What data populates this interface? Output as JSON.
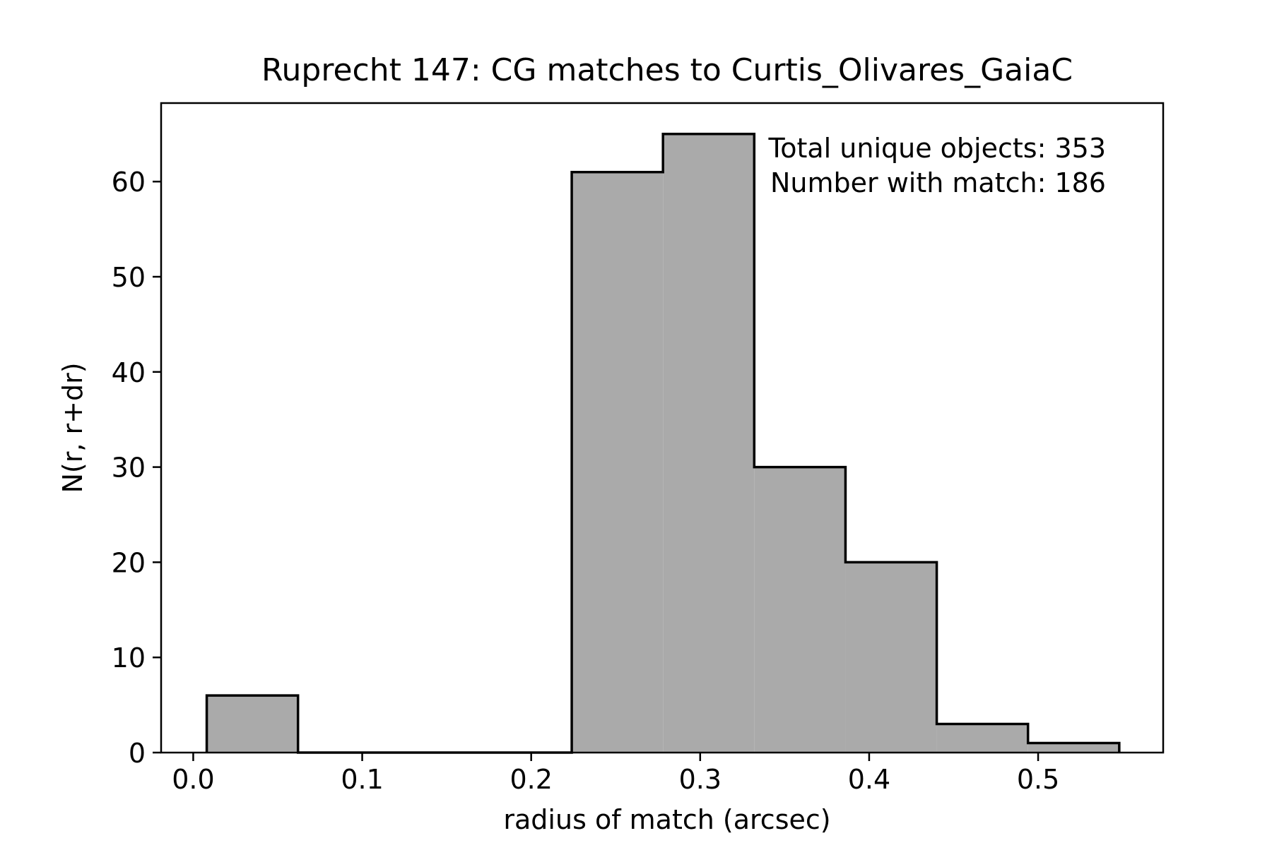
{
  "chart_data": {
    "type": "bar",
    "title": "Ruprecht 147: CG matches to Curtis_Olivares_GaiaC",
    "xlabel": "radius of match (arcsec)",
    "ylabel": "N(r, r+dr)",
    "xlim": [
      -0.019,
      0.574
    ],
    "ylim": [
      0,
      68.25
    ],
    "xticks": [
      0.0,
      0.1,
      0.2,
      0.3,
      0.4,
      0.5
    ],
    "xtick_labels": [
      "0.0",
      "0.1",
      "0.2",
      "0.3",
      "0.4",
      "0.5"
    ],
    "yticks": [
      0,
      10,
      20,
      30,
      40,
      50,
      60
    ],
    "ytick_labels": [
      "0",
      "10",
      "20",
      "30",
      "40",
      "50",
      "60"
    ],
    "bin_edges": [
      0.008,
      0.062,
      0.116,
      0.17,
      0.224,
      0.278,
      0.332,
      0.386,
      0.44,
      0.494,
      0.548
    ],
    "values": [
      6,
      0,
      0,
      0,
      61,
      65,
      30,
      20,
      3,
      1
    ],
    "colors": {
      "fill": "#aaaaaa",
      "edge": "#000000"
    },
    "grid": false,
    "annotations": [
      "Total unique objects: 353",
      "Number with match: 186"
    ]
  }
}
